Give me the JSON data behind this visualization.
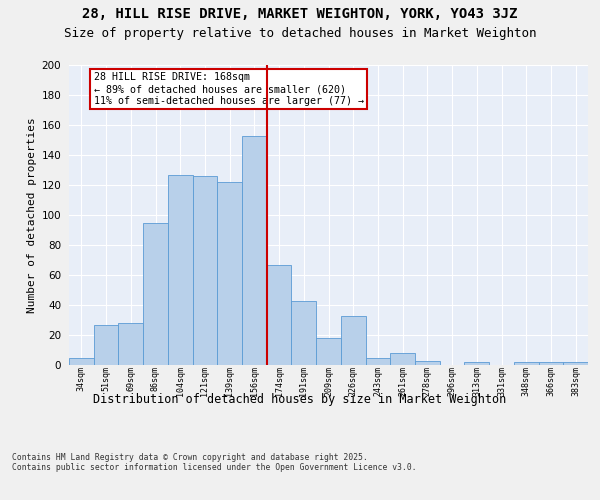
{
  "title1": "28, HILL RISE DRIVE, MARKET WEIGHTON, YORK, YO43 3JZ",
  "title2": "Size of property relative to detached houses in Market Weighton",
  "xlabel": "Distribution of detached houses by size in Market Weighton",
  "ylabel": "Number of detached properties",
  "bins": [
    "34sqm",
    "51sqm",
    "69sqm",
    "86sqm",
    "104sqm",
    "121sqm",
    "139sqm",
    "156sqm",
    "174sqm",
    "191sqm",
    "209sqm",
    "226sqm",
    "243sqm",
    "261sqm",
    "278sqm",
    "296sqm",
    "313sqm",
    "331sqm",
    "348sqm",
    "366sqm",
    "383sqm"
  ],
  "bar_values": [
    5,
    27,
    28,
    95,
    127,
    126,
    122,
    153,
    67,
    43,
    18,
    33,
    5,
    8,
    3,
    0,
    2,
    0,
    2,
    2,
    2
  ],
  "bar_color": "#b8d0ea",
  "bar_edge_color": "#5b9bd5",
  "vline_color": "#cc0000",
  "annotation_text": "28 HILL RISE DRIVE: 168sqm\n← 89% of detached houses are smaller (620)\n11% of semi-detached houses are larger (77) →",
  "annotation_box_color": "#cc0000",
  "ylim": [
    0,
    200
  ],
  "yticks": [
    0,
    20,
    40,
    60,
    80,
    100,
    120,
    140,
    160,
    180,
    200
  ],
  "background_color": "#e8eef8",
  "grid_color": "#ffffff",
  "fig_background": "#f0f0f0",
  "footer_text": "Contains HM Land Registry data © Crown copyright and database right 2025.\nContains public sector information licensed under the Open Government Licence v3.0.",
  "title1_fontsize": 10,
  "title2_fontsize": 9,
  "xlabel_fontsize": 8.5,
  "ylabel_fontsize": 8
}
